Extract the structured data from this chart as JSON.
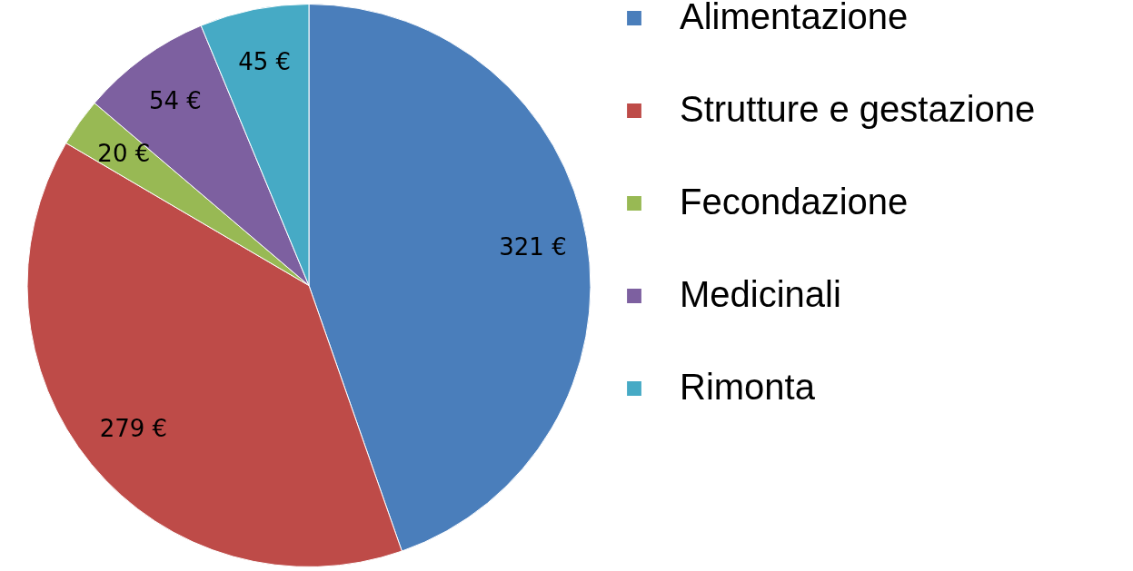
{
  "chart_data": {
    "type": "pie",
    "categories": [
      "Alimentazione",
      "Strutture e gestazione",
      "Fecondazione",
      "Medicinali",
      "Rimonta"
    ],
    "values": [
      321,
      279,
      20,
      54,
      45
    ],
    "colors": [
      "#4a7ebb",
      "#be4b48",
      "#98b954",
      "#7d60a0",
      "#46aac5"
    ],
    "value_labels": [
      "321 €",
      "279 €",
      "20 €",
      "54 €",
      "45 €"
    ],
    "legend": "right"
  }
}
